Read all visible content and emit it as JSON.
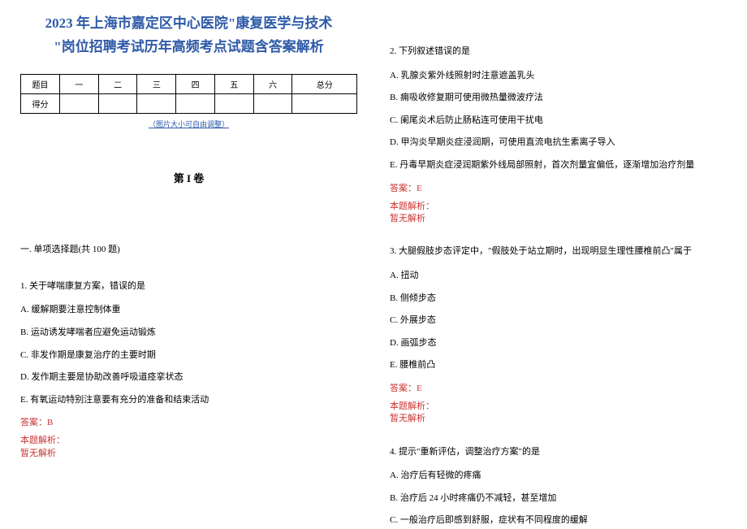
{
  "title_line1": "2023 年上海市嘉定区中心医院\"康复医学与技术",
  "title_line2": "\"岗位招聘考试历年高频考点试题含答案解析",
  "table": {
    "row1_label": "题目",
    "row2_label": "得分",
    "headers": [
      "一",
      "二",
      "三",
      "四",
      "五",
      "六",
      "总分"
    ]
  },
  "table_note": "（图片大小可自由调整）",
  "volume_title": "第 I 卷",
  "section_heading": "一. 单项选择题(共 100 题)",
  "q1": {
    "stem": "1. 关于哮喘康复方案，错误的是",
    "A": "A. 缓解期要注意控制体重",
    "B": "B. 运动诱发哮喘者应避免运动锻炼",
    "C": "C. 非发作期是康复治疗的主要时期",
    "D": "D. 发作期主要是协助改善呼吸道痉挛状态",
    "E": "E. 有氧运动特别注意要有充分的准备和结束活动",
    "answer": "答案：B",
    "analysis_label": "本题解析：",
    "analysis_text": "暂无解析"
  },
  "q2": {
    "stem": "2. 下列叙述错误的是",
    "A": "A. 乳腺炎紫外线照射时注意遮盖乳头",
    "B": "B. 痈吸收修复期可使用微热量微波疗法",
    "C": "C. 阑尾炎术后防止肠粘连可使用干扰电",
    "D": "D. 甲沟炎早期炎症浸润期，可使用直流电抗生素离子导入",
    "E": "E. 丹毒早期炎症浸润期紫外线局部照射，首次剂量宜偏低，逐渐增加治疗剂量",
    "answer": "答案：E",
    "analysis_label": "本题解析：",
    "analysis_text": "暂无解析"
  },
  "q3": {
    "stem": "3. 大腿假肢步态评定中，\"假肢处于站立期时，出现明显生理性腰椎前凸\"属于",
    "A": "A. 扭动",
    "B": "B. 侧倾步态",
    "C": "C. 外展步态",
    "D": "D. 画弧步态",
    "E": "E. 腰椎前凸",
    "answer": "答案：E",
    "analysis_label": "本题解析：",
    "analysis_text": "暂无解析"
  },
  "q4": {
    "stem": "4. 提示\"重新评估，调整治疗方案\"的是",
    "A": "A. 治疗后有轻微的疼痛",
    "B": "B. 治疗后 24 小时疼痛仍不减轻，甚至增加",
    "C": "C. 一般治疗后即感到舒服，症状有不同程度的缓解"
  }
}
